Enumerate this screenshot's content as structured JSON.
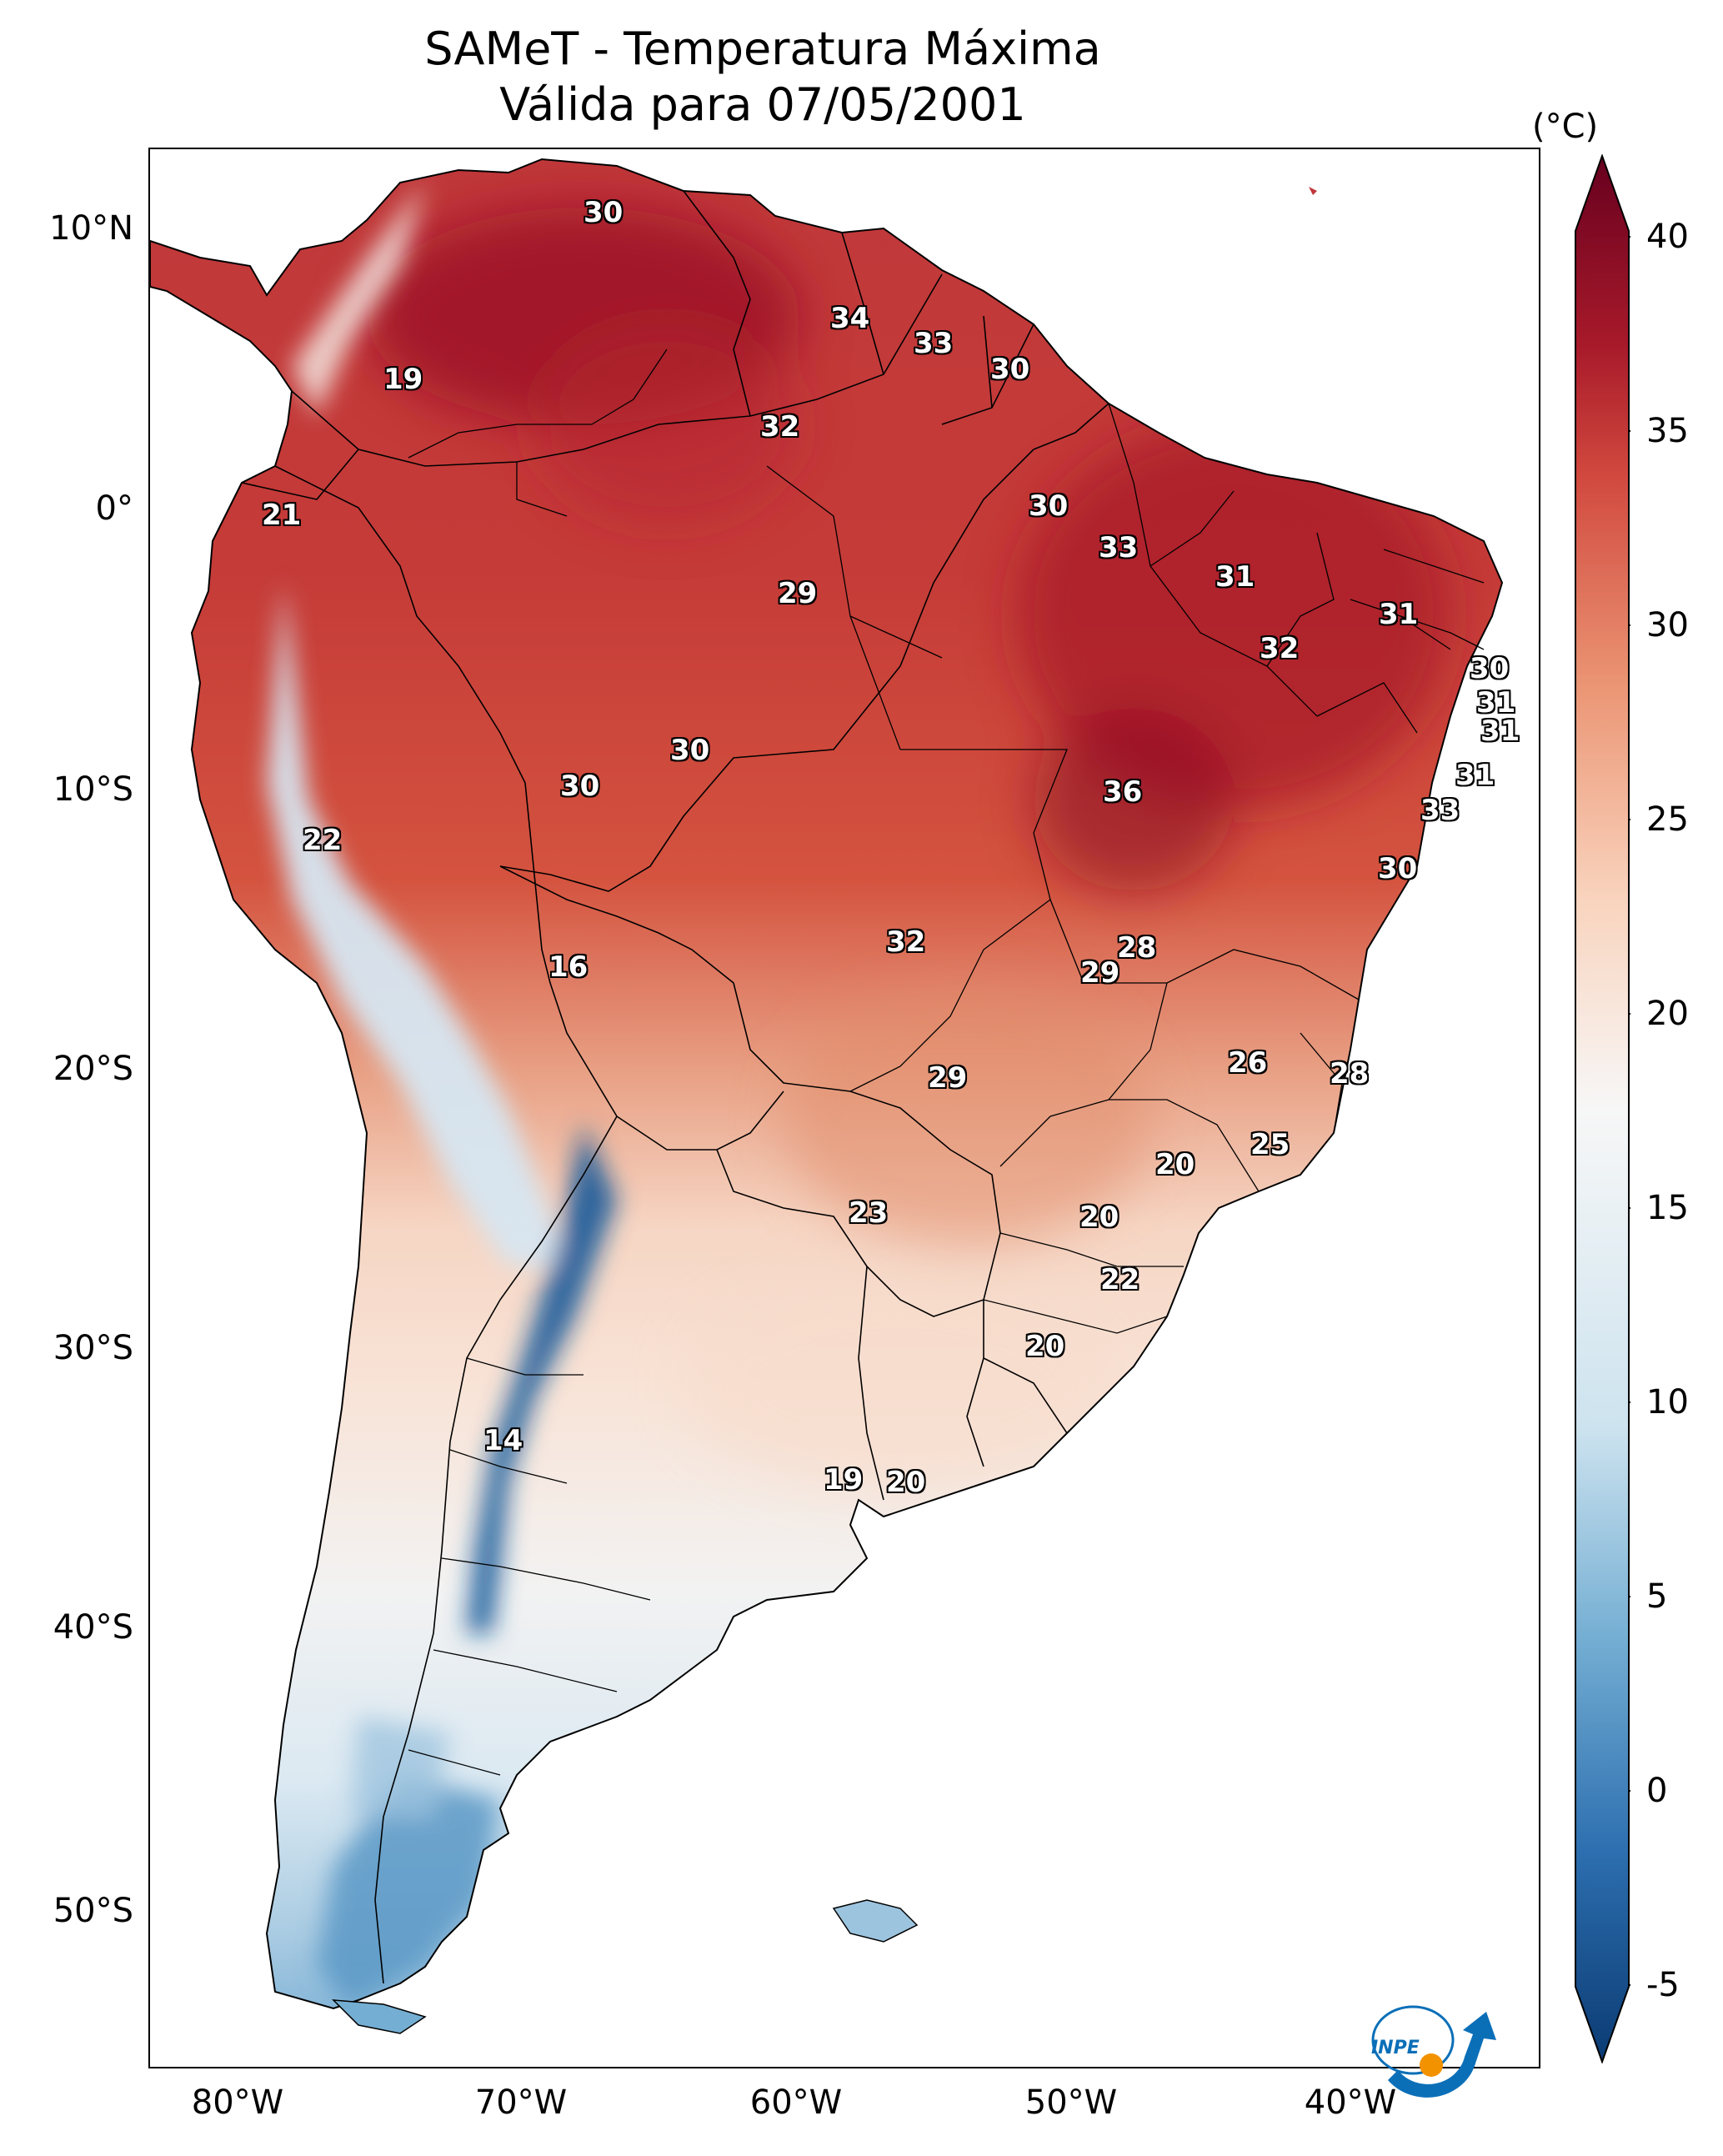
{
  "title": {
    "line1": "SAMeT - Temperatura Máxima",
    "line2": "Válida para 07/05/2001"
  },
  "colorbar": {
    "unit": "(°C)",
    "ticks": [
      "40",
      "35",
      "30",
      "25",
      "20",
      "15",
      "10",
      "5",
      "0",
      "-5"
    ],
    "min": -5,
    "max": 40,
    "colors": [
      "#0b3b73",
      "#2d6fb0",
      "#74aed3",
      "#cde3ef",
      "#f7f7f7",
      "#f9d3bd",
      "#eb9574",
      "#d1483e",
      "#a81a2a",
      "#67001f"
    ]
  },
  "axes": {
    "lat_labels": [
      "10°N",
      "0°",
      "10°S",
      "20°S",
      "30°S",
      "40°S",
      "50°S"
    ],
    "lon_labels": [
      "80°W",
      "70°W",
      "60°W",
      "50°W",
      "40°W"
    ]
  },
  "city_labels": [
    "30",
    "34",
    "33",
    "30",
    "19",
    "32",
    "21",
    "30",
    "33",
    "29",
    "31",
    "31",
    "32",
    "30",
    "31",
    "31",
    "30",
    "30",
    "36",
    "31",
    "33",
    "22",
    "30",
    "16",
    "32",
    "28",
    "29",
    "26",
    "28",
    "29",
    "25",
    "20",
    "20",
    "23",
    "22",
    "20",
    "14",
    "19",
    "20"
  ],
  "logo": {
    "text": "INPE",
    "colors": [
      "#0b6fb8",
      "#f39200"
    ]
  }
}
